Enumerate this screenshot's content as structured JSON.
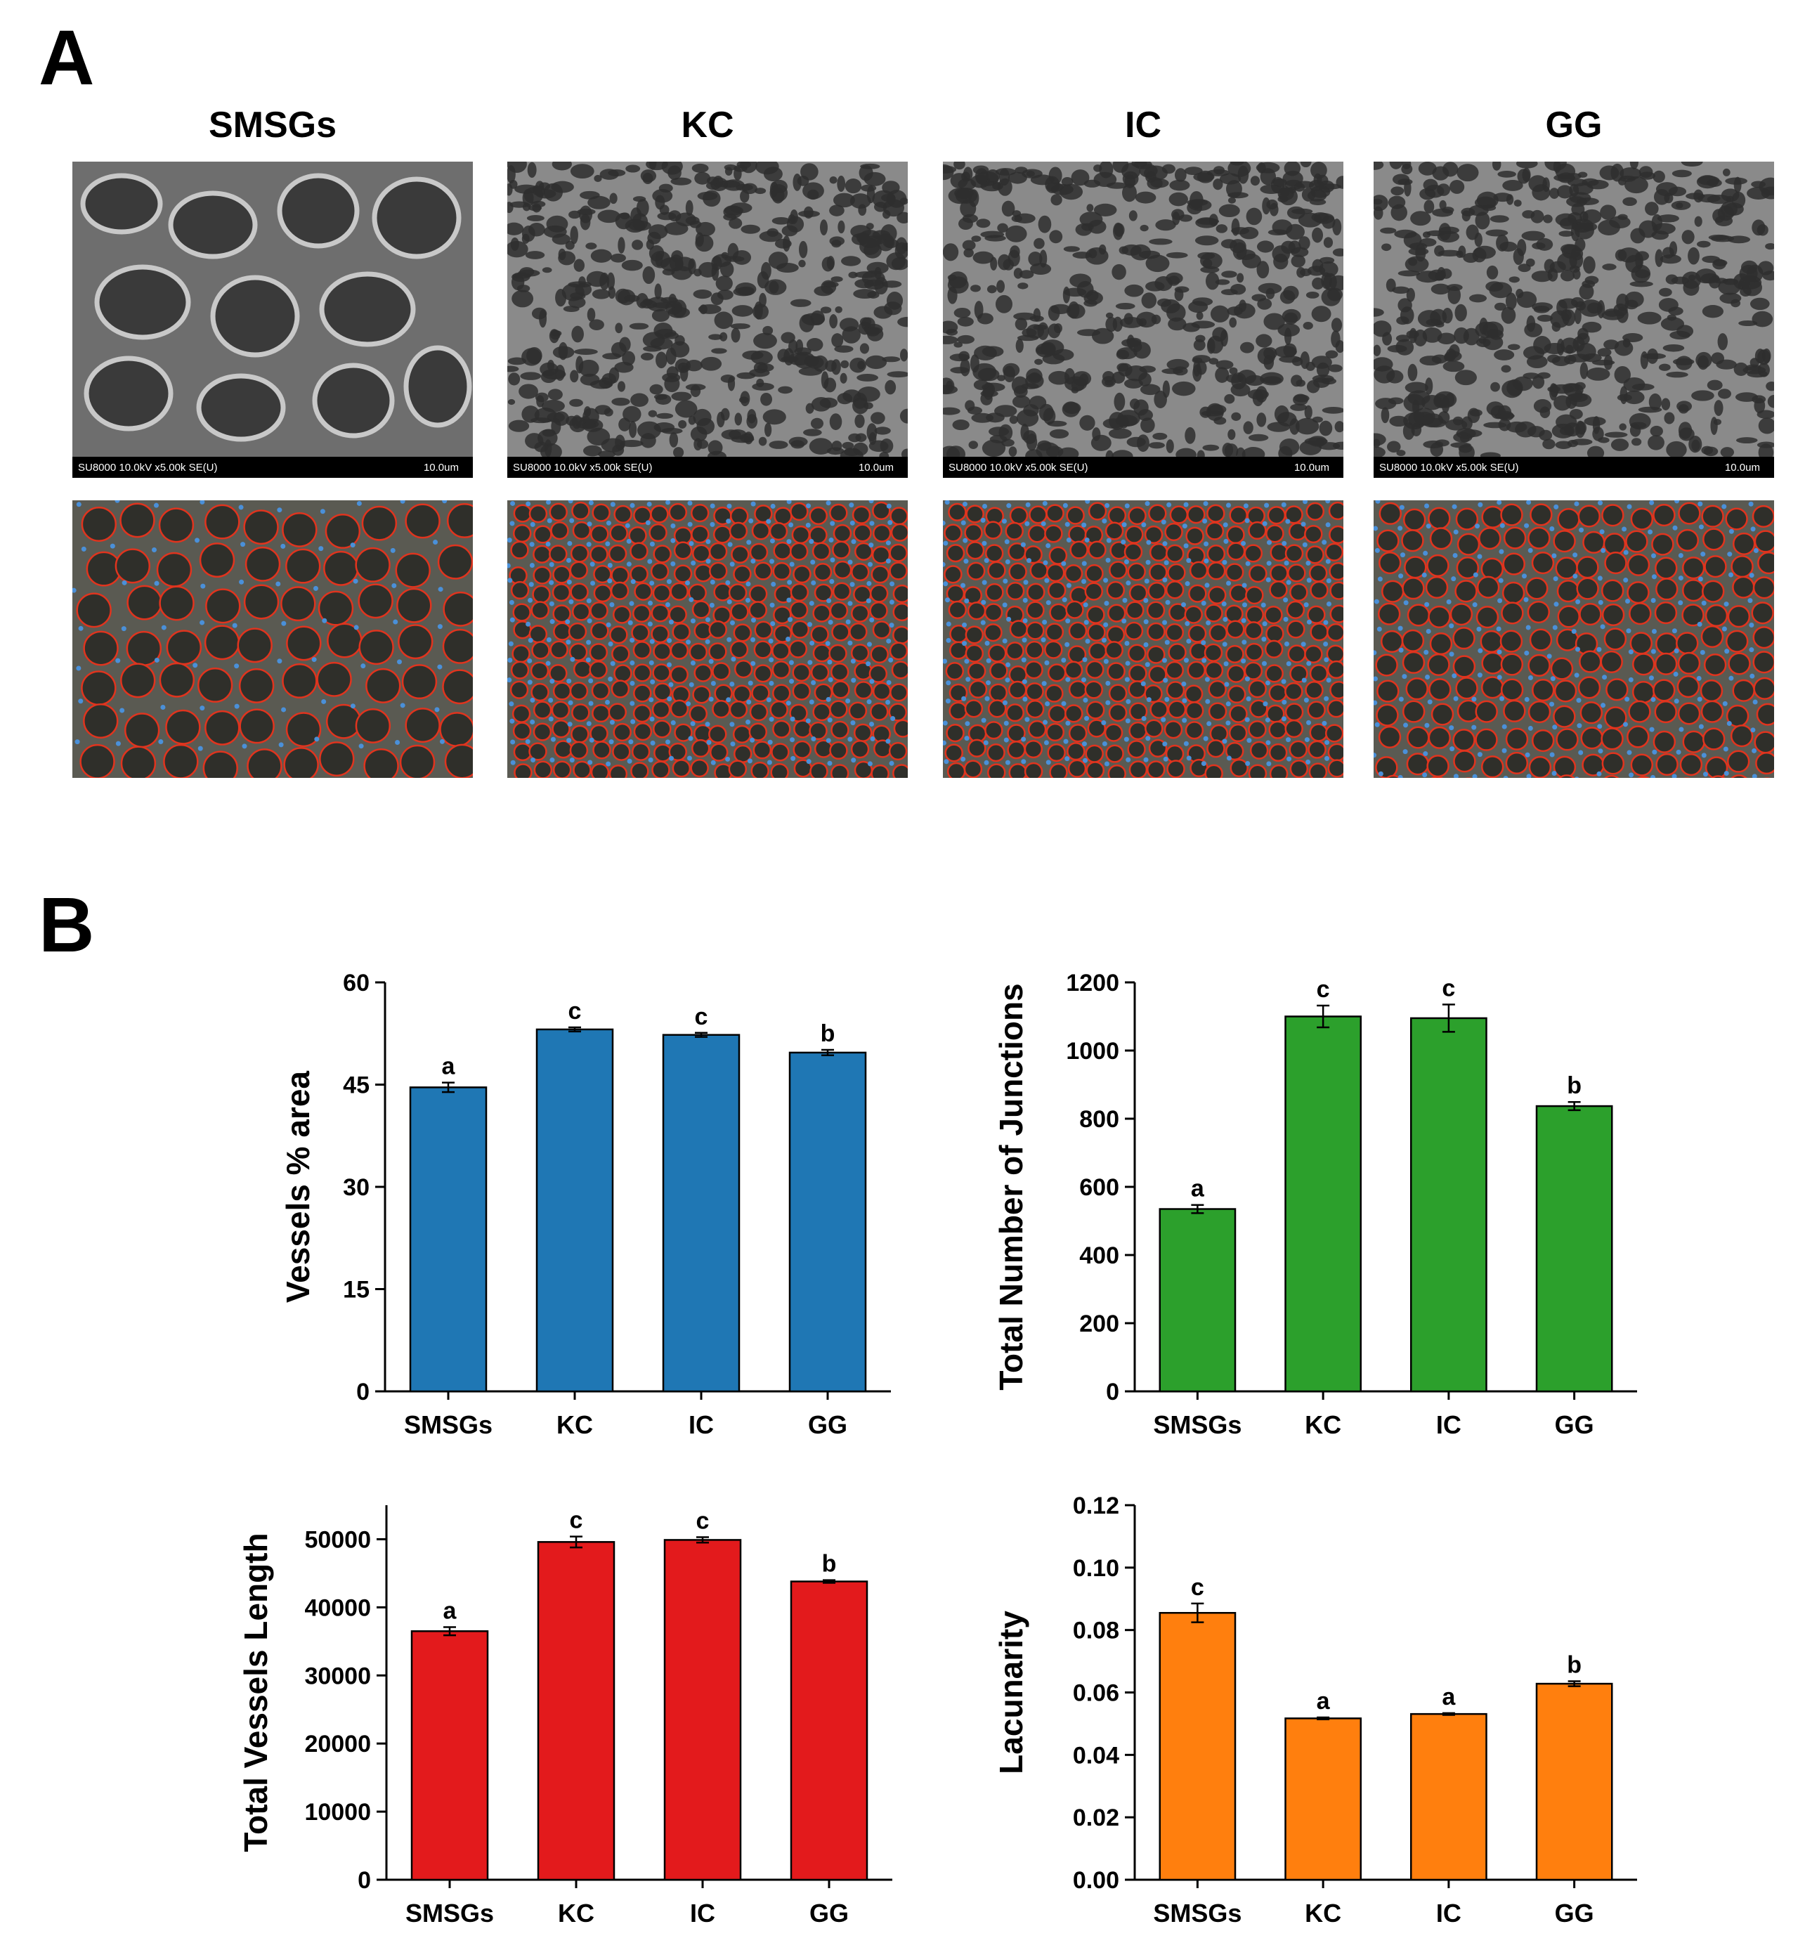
{
  "panel_a": {
    "label": "A",
    "columns": [
      {
        "title": "SMSGs",
        "scale_left": "SU8000 10.0kV x5.00k SE(U)",
        "scale_right": "10.0um"
      },
      {
        "title": "KC",
        "scale_left": "SU8000 10.0kV x5.00k SE(U)",
        "scale_right": "10.0um"
      },
      {
        "title": "IC",
        "scale_left": "SU8000 10.0kV x5.00k SE(U)",
        "scale_right": "10.0um"
      },
      {
        "title": "GG",
        "scale_left": "SU8000 10.0kV x5.00k SE(U)",
        "scale_right": "10.0um"
      }
    ]
  },
  "panel_b": {
    "label": "B"
  },
  "chart_data": [
    {
      "type": "bar",
      "ylabel": "Vessels % area",
      "categories": [
        "SMSGs",
        "KC",
        "IC",
        "GG"
      ],
      "values": [
        44.6,
        53.1,
        52.3,
        49.7
      ],
      "errors": [
        0.7,
        0.3,
        0.3,
        0.4
      ],
      "letters": [
        "a",
        "c",
        "c",
        "b"
      ],
      "ylim": [
        0,
        60
      ],
      "yticks": [
        "0",
        "15",
        "30",
        "45",
        "60"
      ],
      "color": "#1f77b4"
    },
    {
      "type": "bar",
      "ylabel": "Total Number of Junctions",
      "categories": [
        "SMSGs",
        "KC",
        "IC",
        "GG"
      ],
      "values": [
        535,
        1100,
        1095,
        837
      ],
      "errors": [
        12,
        32,
        40,
        12
      ],
      "letters": [
        "a",
        "c",
        "c",
        "b"
      ],
      "ylim": [
        0,
        1200
      ],
      "yticks": [
        "0",
        "200",
        "400",
        "600",
        "800",
        "1000",
        "1200"
      ],
      "color": "#2ca02c"
    },
    {
      "type": "bar",
      "ylabel": "Total Vessels Length",
      "categories": [
        "SMSGs",
        "KC",
        "IC",
        "GG"
      ],
      "values": [
        36500,
        49600,
        49900,
        43800
      ],
      "errors": [
        600,
        800,
        400,
        200
      ],
      "letters": [
        "a",
        "c",
        "c",
        "b"
      ],
      "ylim": [
        0,
        55000
      ],
      "yticks": [
        "0",
        "10000",
        "20000",
        "30000",
        "40000",
        "50000"
      ],
      "color": "#e31a1c"
    },
    {
      "type": "bar",
      "ylabel": "Lacunarity",
      "categories": [
        "SMSGs",
        "KC",
        "IC",
        "GG"
      ],
      "values": [
        0.0855,
        0.0517,
        0.0531,
        0.0628
      ],
      "errors": [
        0.003,
        0.0003,
        0.0003,
        0.0008
      ],
      "letters": [
        "c",
        "a",
        "a",
        "b"
      ],
      "ylim": [
        0,
        0.12
      ],
      "yticks": [
        "0.00",
        "0.02",
        "0.04",
        "0.06",
        "0.08",
        "0.10",
        "0.12"
      ],
      "color": "#ff7f0e"
    }
  ]
}
